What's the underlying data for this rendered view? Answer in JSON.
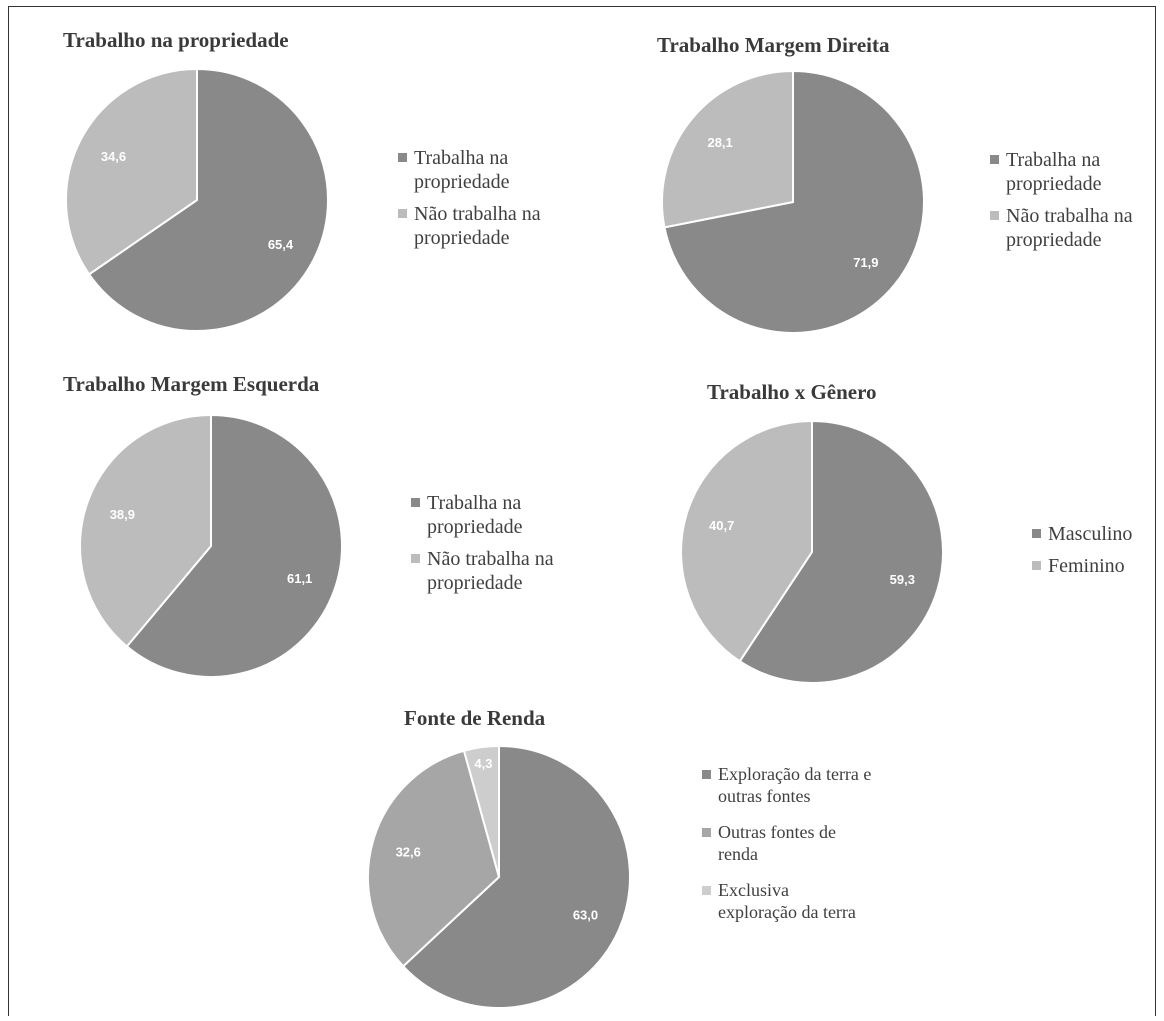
{
  "chart_data": [
    {
      "type": "pie",
      "title": "Trabalho na propriedade",
      "slices": [
        {
          "label": "Trabalha na propriedade",
          "value": 65.4,
          "display": "65,4",
          "color": "#898989"
        },
        {
          "label": "Não trabalha na propriedade",
          "value": 34.6,
          "display": "34,6",
          "color": "#bcbcbc"
        }
      ],
      "legend_position": "right"
    },
    {
      "type": "pie",
      "title": "Trabalho Margem Direita",
      "slices": [
        {
          "label": "Trabalha na propriedade",
          "value": 71.9,
          "display": "71,9",
          "color": "#898989"
        },
        {
          "label": "Não trabalha na propriedade",
          "value": 28.1,
          "display": "28,1",
          "color": "#bcbcbc"
        }
      ],
      "legend_position": "right"
    },
    {
      "type": "pie",
      "title": "Trabalho Margem Esquerda",
      "slices": [
        {
          "label": "Trabalha na propriedade",
          "value": 61.1,
          "display": "61,1",
          "color": "#898989"
        },
        {
          "label": "Não trabalha na propriedade",
          "value": 38.9,
          "display": "38,9",
          "color": "#bcbcbc"
        }
      ],
      "legend_position": "right"
    },
    {
      "type": "pie",
      "title": "Trabalho x Gênero",
      "slices": [
        {
          "label": "Masculino",
          "value": 59.3,
          "display": "59,3",
          "color": "#898989"
        },
        {
          "label": "Feminino",
          "value": 40.7,
          "display": "40,7",
          "color": "#bcbcbc"
        }
      ],
      "legend_position": "right"
    },
    {
      "type": "pie",
      "title": "Fonte de Renda",
      "slices": [
        {
          "label": "Exploração da terra e outras fontes",
          "value": 63.0,
          "display": "63,0",
          "color": "#898989"
        },
        {
          "label": "Outras fontes de renda",
          "value": 32.6,
          "display": "32,6",
          "color": "#a6a6a6"
        },
        {
          "label": "Exclusiva exploração da terra",
          "value": 4.3,
          "display": "4,3",
          "color": "#cdcdcd"
        }
      ],
      "legend_position": "right"
    }
  ]
}
